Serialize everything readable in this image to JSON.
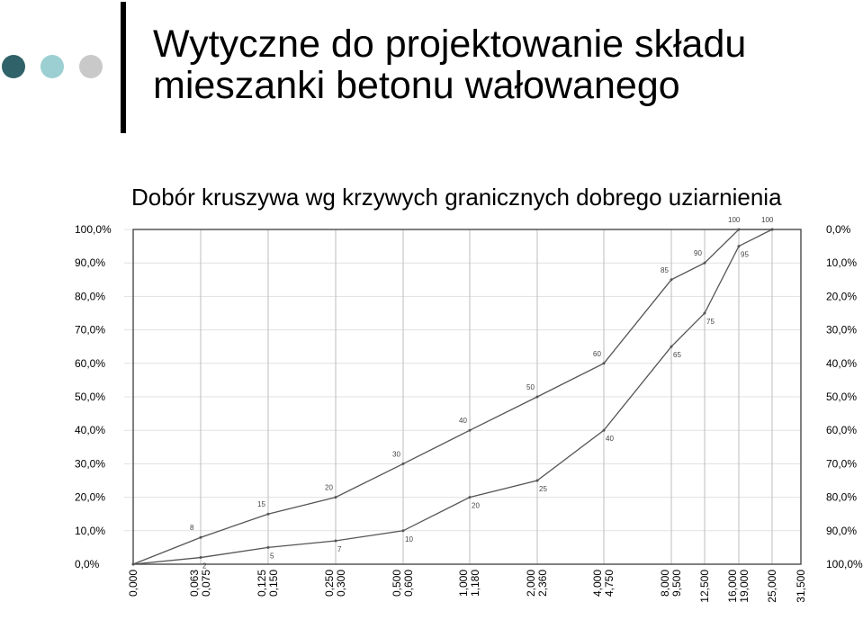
{
  "slide": {
    "title_line1": "Wytyczne do projektowanie składu",
    "title_line2": "mieszanki betonu wałowanego",
    "subtitle": "Dobór kruszywa wg krzywych granicznych dobrego uziarnienia",
    "dot_colors": [
      "#2f6269",
      "#9ccfd1",
      "#c9c9c9"
    ]
  },
  "chart_data": {
    "type": "line",
    "title": "",
    "xlabel": "",
    "ylabel": "",
    "x_tick_labels": [
      "0,000",
      "0,063\n0,075",
      "0,125\n0,150",
      "0,250\n0,300",
      "0,500\n0,600",
      "1,000\n1,180",
      "2,000\n2,360",
      "4,000\n4,750",
      "8,000\n9,500",
      "12,500",
      "16,000\n19,000",
      "25,000",
      "31,500"
    ],
    "y_left_ticks": [
      "0,0%",
      "10,0%",
      "20,0%",
      "30,0%",
      "40,0%",
      "50,0%",
      "60,0%",
      "70,0%",
      "80,0%",
      "90,0%",
      "100,0%"
    ],
    "y_right_ticks": [
      "100,0%",
      "90,0%",
      "80,0%",
      "70,0%",
      "60,0%",
      "50,0%",
      "40,0%",
      "30,0%",
      "20,0%",
      "10,0%",
      "0,0%"
    ],
    "ylim": [
      0,
      100
    ],
    "grid": true,
    "series": [
      {
        "color": "#555555",
        "points": [
          {
            "x": "0,000",
            "y": 0,
            "label": ""
          },
          {
            "x": "0,075",
            "y": 8,
            "label": "8"
          },
          {
            "x": "0,150",
            "y": 15,
            "label": "15"
          },
          {
            "x": "0,300",
            "y": 20,
            "label": "20"
          },
          {
            "x": "0,600",
            "y": 30,
            "label": "30"
          },
          {
            "x": "1,180",
            "y": 40,
            "label": "40"
          },
          {
            "x": "2,360",
            "y": 50,
            "label": "50"
          },
          {
            "x": "4,750",
            "y": 60,
            "label": "60"
          },
          {
            "x": "9,500",
            "y": 85,
            "label": "85"
          },
          {
            "x": "12,500",
            "y": 90,
            "label": "90"
          },
          {
            "x": "19,000",
            "y": 100,
            "label": "100"
          },
          {
            "x": "25,000",
            "y": 100,
            "label": "100"
          }
        ]
      },
      {
        "color": "#555555",
        "points": [
          {
            "x": "0,000",
            "y": 0,
            "label": ""
          },
          {
            "x": "0,075",
            "y": 2,
            "label": "2"
          },
          {
            "x": "0,150",
            "y": 5,
            "label": "5"
          },
          {
            "x": "0,300",
            "y": 7,
            "label": "7"
          },
          {
            "x": "0,600",
            "y": 10,
            "label": "10"
          },
          {
            "x": "1,180",
            "y": 20,
            "label": "20"
          },
          {
            "x": "2,360",
            "y": 25,
            "label": "25"
          },
          {
            "x": "4,750",
            "y": 40,
            "label": "40"
          },
          {
            "x": "9,500",
            "y": 65,
            "label": "65"
          },
          {
            "x": "12,500",
            "y": 75,
            "label": "75"
          },
          {
            "x": "19,000",
            "y": 95,
            "label": "95"
          },
          {
            "x": "25,000",
            "y": 100,
            "label": ""
          }
        ]
      }
    ]
  }
}
